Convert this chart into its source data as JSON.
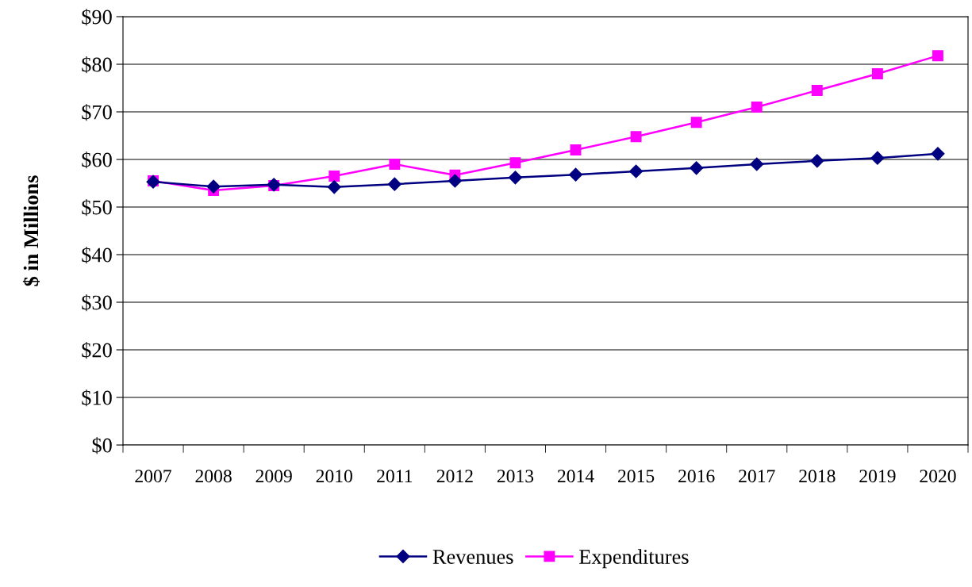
{
  "chart_data": {
    "type": "line",
    "ylabel": "$ in Millions",
    "categories": [
      "2007",
      "2008",
      "2009",
      "2010",
      "2011",
      "2012",
      "2013",
      "2014",
      "2015",
      "2016",
      "2017",
      "2018",
      "2019",
      "2020"
    ],
    "series": [
      {
        "name": "Revenues",
        "color": "#000080",
        "marker": "diamond",
        "values": [
          55.3,
          54.3,
          54.7,
          54.2,
          54.8,
          55.5,
          56.2,
          56.8,
          57.5,
          58.2,
          59.0,
          59.7,
          60.3,
          61.2
        ]
      },
      {
        "name": "Expenditures",
        "color": "#ff00ff",
        "marker": "square",
        "values": [
          55.5,
          53.5,
          54.5,
          56.5,
          59.0,
          56.7,
          59.3,
          62.0,
          64.8,
          67.8,
          71.0,
          74.5,
          78.0,
          81.8
        ]
      }
    ],
    "ylim": [
      0,
      90
    ],
    "yticks": [
      {
        "value": 0,
        "label": "$0"
      },
      {
        "value": 10,
        "label": "$10"
      },
      {
        "value": 20,
        "label": "$20"
      },
      {
        "value": 30,
        "label": "$30"
      },
      {
        "value": 40,
        "label": "$40"
      },
      {
        "value": 50,
        "label": "$50"
      },
      {
        "value": 60,
        "label": "$60"
      },
      {
        "value": 70,
        "label": "$70"
      },
      {
        "value": 80,
        "label": "$80"
      },
      {
        "value": 90,
        "label": "$90"
      }
    ],
    "grid": "y",
    "legend": "bottom",
    "line_style": "solid"
  }
}
